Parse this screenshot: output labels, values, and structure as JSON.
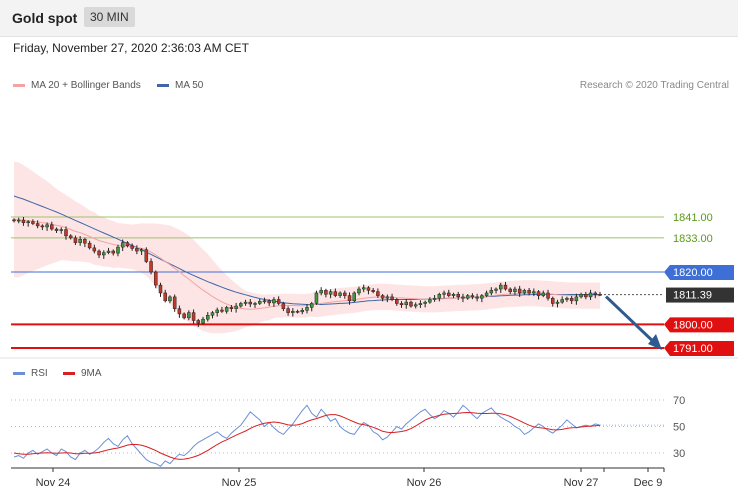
{
  "header": {
    "instrument": "Gold spot",
    "timeframe": "30 MIN"
  },
  "timestamp": "Friday, November 27, 2020 2:36:03 AM CET",
  "legend": {
    "ma20": "MA 20 + Bollinger Bands",
    "ma50": "MA 50",
    "rsi": "RSI",
    "ma9": "9MA",
    "credit": "Research © 2020 Trading Central"
  },
  "colors": {
    "ma20": "#f2a3a3",
    "ma50": "#3f67a8",
    "bollinger_fill": "#fde0e0",
    "resistance_green": "#9cc46a",
    "resistance_blue": "#3e6fd6",
    "support_red": "#e01010",
    "last_price_label": "#333333",
    "arrow": "#2f5a8f",
    "rsi": "#6b8fd6",
    "rsi_ma": "#d92020"
  },
  "chart_data": [
    {
      "type": "candlestick",
      "title": "Gold spot",
      "x_labels": [
        "Nov 24",
        "Nov 25",
        "Nov 26",
        "Nov 27",
        "Dec 9"
      ],
      "ylim": [
        1785,
        1870
      ],
      "levels": [
        {
          "value": 1841.0,
          "label": "1841.00",
          "kind": "resistance"
        },
        {
          "value": 1833.0,
          "label": "1833.00",
          "kind": "resistance"
        },
        {
          "value": 1820.0,
          "label": "1820.00",
          "kind": "pivot"
        },
        {
          "value": 1811.39,
          "label": "1811.39",
          "kind": "last"
        },
        {
          "value": 1800.0,
          "label": "1800.00",
          "kind": "support"
        },
        {
          "value": 1791.0,
          "label": "1791.00",
          "kind": "support"
        }
      ],
      "close": [
        1839.5,
        1839.8,
        1838.8,
        1839.2,
        1838.5,
        1837.6,
        1837.2,
        1838.0,
        1836.4,
        1835.8,
        1836.2,
        1833.8,
        1833.0,
        1831.2,
        1832.5,
        1831.0,
        1829.2,
        1828.0,
        1826.5,
        1827.4,
        1828.0,
        1827.2,
        1829.5,
        1831.2,
        1830.0,
        1829.0,
        1828.0,
        1828.5,
        1824.0,
        1820.0,
        1815.0,
        1812.0,
        1809.0,
        1810.5,
        1806.0,
        1804.0,
        1802.5,
        1804.5,
        1801.5,
        1800.5,
        1802.0,
        1803.5,
        1804.5,
        1805.5,
        1805.0,
        1806.5,
        1806.0,
        1807.0,
        1808.0,
        1808.5,
        1807.8,
        1808.0,
        1808.8,
        1809.0,
        1808.2,
        1809.5,
        1808.0,
        1806.0,
        1804.5,
        1805.0,
        1804.8,
        1805.4,
        1806.5,
        1808.0,
        1812.0,
        1813.0,
        1811.5,
        1812.5,
        1811.0,
        1812.0,
        1811.0,
        1809.0,
        1812.0,
        1813.5,
        1814.0,
        1813.0,
        1812.5,
        1811.0,
        1810.0,
        1810.5,
        1809.5,
        1808.0,
        1807.5,
        1808.5,
        1807.0,
        1807.5,
        1808.0,
        1808.5,
        1809.5,
        1810.0,
        1811.5,
        1812.0,
        1811.0,
        1811.5,
        1810.5,
        1810.0,
        1811.0,
        1810.5,
        1810.0,
        1811.0,
        1812.0,
        1813.0,
        1813.5,
        1815.0,
        1813.5,
        1812.5,
        1813.5,
        1812.0,
        1813.0,
        1812.0,
        1812.5,
        1811.0,
        1812.0,
        1810.0,
        1808.0,
        1808.5,
        1809.5,
        1810.0,
        1809.0,
        1810.5,
        1811.5,
        1810.5,
        1812.0,
        1811.5,
        1811.39
      ],
      "ma20": [
        1840.0,
        1839.9,
        1839.8,
        1839.6,
        1839.4,
        1839.1,
        1838.8,
        1838.6,
        1838.2,
        1837.8,
        1837.5,
        1836.9,
        1836.2,
        1835.5,
        1835.0,
        1834.3,
        1833.6,
        1832.8,
        1832.0,
        1831.5,
        1831.0,
        1830.5,
        1830.2,
        1830.0,
        1829.8,
        1829.6,
        1829.3,
        1829.1,
        1828.5,
        1827.6,
        1826.5,
        1825.3,
        1824.0,
        1822.8,
        1821.4,
        1820.1,
        1818.6,
        1817.3,
        1815.8,
        1814.4,
        1813.1,
        1811.9,
        1810.6,
        1809.6,
        1808.6,
        1807.8,
        1807.1,
        1806.5,
        1806.1,
        1805.9,
        1805.8,
        1805.9,
        1806.1,
        1806.3,
        1806.6,
        1806.9,
        1807.1,
        1807.2,
        1807.2,
        1807.2,
        1807.1,
        1807.1,
        1807.2,
        1807.4,
        1807.7,
        1808.0,
        1808.2,
        1808.5,
        1808.7,
        1808.9,
        1809.1,
        1809.2,
        1809.4,
        1809.7,
        1810.0,
        1810.2,
        1810.4,
        1810.5,
        1810.5,
        1810.5,
        1810.4,
        1810.2,
        1810.1,
        1810.0,
        1809.9,
        1809.8,
        1809.7,
        1809.6,
        1809.6,
        1809.6,
        1809.7,
        1809.8,
        1809.9,
        1810.0,
        1810.1,
        1810.1,
        1810.2,
        1810.3,
        1810.4,
        1810.5,
        1810.7,
        1810.9,
        1811.1,
        1811.3,
        1811.5,
        1811.6,
        1811.7,
        1811.8,
        1811.9,
        1811.9,
        1811.9,
        1811.8,
        1811.7,
        1811.6,
        1811.5,
        1811.3,
        1811.2,
        1811.1,
        1811.0,
        1811.0,
        1811.0,
        1811.0,
        1811.0,
        1811.0,
        1811.0
      ],
      "bb_width": [
        22,
        22,
        21,
        20,
        19,
        18,
        17,
        16,
        15,
        14,
        13,
        12.5,
        12,
        11.5,
        11,
        10.5,
        10,
        10,
        9.5,
        9.5,
        9,
        9,
        8.5,
        8.5,
        8.5,
        8.5,
        9,
        9.5,
        10,
        11,
        12,
        13,
        14,
        15,
        15.5,
        16,
        16.5,
        16.5,
        16.5,
        16,
        15.5,
        15,
        14,
        13,
        12,
        11,
        10,
        9,
        8,
        7,
        6.5,
        6,
        5.5,
        5,
        5,
        4.5,
        4.5,
        4.5,
        4.5,
        4.5,
        4.5,
        4.5,
        4.5,
        4.5,
        5,
        5,
        5,
        5,
        5,
        5,
        5,
        5,
        5,
        5,
        5,
        5,
        5,
        5,
        5,
        5,
        5,
        5,
        5,
        5,
        5,
        5,
        5,
        5,
        5,
        5,
        5,
        5,
        5,
        5,
        5,
        5,
        5,
        5,
        5,
        5,
        5,
        5,
        5,
        5,
        5,
        5,
        5,
        5,
        5,
        5,
        5,
        5,
        5,
        5,
        5,
        5,
        5,
        5,
        5,
        5,
        5,
        5,
        5,
        5,
        5
      ],
      "ma50": [
        1849,
        1848.4,
        1847.8,
        1847.1,
        1846.4,
        1845.7,
        1845.0,
        1844.3,
        1843.6,
        1842.9,
        1842.1,
        1841.3,
        1840.5,
        1839.7,
        1838.9,
        1838.1,
        1837.3,
        1836.5,
        1835.7,
        1834.9,
        1834.1,
        1833.3,
        1832.5,
        1831.7,
        1830.9,
        1830.1,
        1829.3,
        1828.5,
        1827.6,
        1826.7,
        1825.8,
        1824.9,
        1824.0,
        1823.1,
        1822.2,
        1821.3,
        1820.4,
        1819.5,
        1818.7,
        1817.9,
        1817.1,
        1816.3,
        1815.6,
        1814.9,
        1814.2,
        1813.5,
        1812.9,
        1812.3,
        1811.8,
        1811.3,
        1810.8,
        1810.3,
        1809.9,
        1809.5,
        1809.2,
        1808.9,
        1808.6,
        1808.3,
        1808.1,
        1807.9,
        1807.8,
        1807.7,
        1807.6,
        1807.6,
        1807.6,
        1807.6,
        1807.7,
        1807.8,
        1807.9,
        1808.0,
        1808.1,
        1808.2,
        1808.4,
        1808.6,
        1808.8,
        1809.0,
        1809.1,
        1809.2,
        1809.3,
        1809.4,
        1809.5,
        1809.5,
        1809.5,
        1809.5,
        1809.5,
        1809.5,
        1809.6,
        1809.6,
        1809.7,
        1809.7,
        1809.8,
        1809.9,
        1810.0,
        1810.0,
        1810.1,
        1810.2,
        1810.3,
        1810.3,
        1810.4,
        1810.5,
        1810.6,
        1810.7,
        1810.8,
        1810.9,
        1811.0,
        1811.1,
        1811.2,
        1811.2,
        1811.3,
        1811.3,
        1811.4,
        1811.4,
        1811.4,
        1811.4,
        1811.4,
        1811.4,
        1811.4,
        1811.4,
        1811.4,
        1811.4,
        1811.4,
        1811.4,
        1811.4,
        1811.4,
        1811.4
      ],
      "forecast": {
        "from": 1811.39,
        "to": 1791.0
      }
    },
    {
      "type": "line",
      "title": "RSI",
      "yticks": [
        70,
        50,
        30
      ],
      "ylim": [
        15,
        85
      ],
      "series": [
        {
          "name": "RSI",
          "values": [
            27,
            28,
            26,
            30,
            32,
            29,
            31,
            33,
            30,
            28,
            33,
            31,
            27,
            25,
            30,
            32,
            29,
            31,
            34,
            38,
            41,
            37,
            35,
            40,
            43,
            37,
            33,
            29,
            25,
            23,
            22,
            20,
            24,
            22,
            26,
            29,
            28,
            31,
            35,
            38,
            40,
            42,
            44,
            46,
            43,
            41,
            45,
            48,
            51,
            56,
            61,
            58,
            55,
            50,
            53,
            49,
            46,
            44,
            48,
            52,
            57,
            62,
            66,
            60,
            57,
            63,
            59,
            54,
            56,
            50,
            47,
            45,
            44,
            49,
            53,
            51,
            46,
            44,
            40,
            42,
            46,
            50,
            48,
            52,
            55,
            58,
            61,
            63,
            59,
            56,
            58,
            62,
            60,
            57,
            61,
            66,
            63,
            59,
            56,
            60,
            62,
            64,
            60,
            57,
            55,
            53,
            50,
            48,
            44,
            46,
            49,
            52,
            50,
            47,
            45,
            48,
            51,
            55,
            52,
            49,
            50,
            51,
            50,
            52,
            51
          ]
        },
        {
          "name": "9MA",
          "values": [
            30,
            29.5,
            29,
            29,
            29.5,
            29.8,
            30,
            30.2,
            30,
            29.8,
            30,
            30.2,
            30,
            29.5,
            29.5,
            29.8,
            29.8,
            30,
            30.6,
            31.5,
            32.5,
            33.2,
            33.8,
            34.8,
            36,
            36.5,
            36.4,
            35.8,
            34.8,
            33.4,
            31.8,
            30,
            28.5,
            27,
            25.8,
            25.2,
            25.4,
            26,
            27,
            28.2,
            30,
            32,
            34.2,
            36.4,
            38.4,
            40,
            41.8,
            43.4,
            45,
            46.6,
            48.6,
            50.2,
            51.4,
            52.4,
            53,
            53.4,
            53,
            52.2,
            51.2,
            51,
            51.2,
            52.2,
            53.8,
            55,
            56,
            57.2,
            58.4,
            59,
            59,
            58,
            56.6,
            55,
            53.4,
            52,
            51.4,
            50.6,
            49.4,
            48,
            46.4,
            45.6,
            45.4,
            45.8,
            46.2,
            47,
            48.4,
            50.4,
            52.6,
            54.8,
            56.4,
            57.4,
            58.4,
            59.2,
            59.6,
            59.8,
            60,
            60.4,
            60.6,
            60.4,
            60,
            59.8,
            59.8,
            60,
            60,
            59.6,
            58.8,
            57.6,
            56,
            54.4,
            52.6,
            51,
            49.8,
            49.2,
            48.8,
            48.2,
            47.6,
            47.4,
            47.8,
            48.6,
            49,
            49.2,
            49.6,
            50,
            50.3,
            50.6,
            50.8
          ]
        }
      ]
    }
  ]
}
